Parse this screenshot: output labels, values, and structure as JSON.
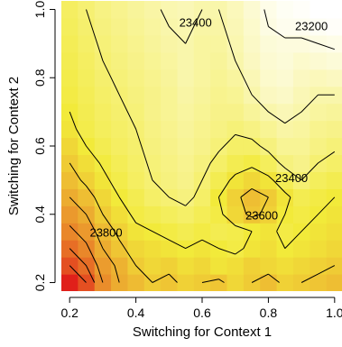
{
  "chart_data": {
    "type": "heatmap",
    "title": "",
    "xlabel": "Switching for Context 1",
    "ylabel": "Switching for Context 2",
    "xlim": [
      0.175,
      1.025
    ],
    "ylim": [
      0.175,
      1.025
    ],
    "x_ticks": [
      "0.2",
      "0.4",
      "0.6",
      "0.8",
      "1.0"
    ],
    "y_ticks": [
      "0.2",
      "0.4",
      "0.6",
      "0.8",
      "1.0"
    ],
    "x_tick_values": [
      0.2,
      0.4,
      0.6,
      0.8,
      1.0
    ],
    "y_tick_values": [
      0.2,
      0.4,
      0.6,
      0.8,
      1.0
    ],
    "grid": false,
    "colormap": {
      "low": "#ffffff",
      "mid": "#f2ea3a",
      "high": "#e0201a",
      "range": [
        23150,
        24150
      ]
    },
    "grid_x": [
      0.2,
      0.25,
      0.3,
      0.35,
      0.4,
      0.45,
      0.5,
      0.55,
      0.6,
      0.65,
      0.7,
      0.75,
      0.8,
      0.85,
      0.9,
      0.95,
      1.0
    ],
    "grid_y": [
      0.2,
      0.25,
      0.3,
      0.35,
      0.4,
      0.45,
      0.5,
      0.55,
      0.6,
      0.65,
      0.7,
      0.75,
      0.8,
      0.85,
      0.9,
      0.95,
      1.0
    ],
    "z": [
      [
        24150,
        24000,
        23800,
        23700,
        23650,
        23600,
        23620,
        23580,
        23600,
        23620,
        23560,
        23600,
        23640,
        23580,
        23600,
        23620,
        23640
      ],
      [
        24000,
        23900,
        23750,
        23680,
        23600,
        23560,
        23580,
        23540,
        23560,
        23520,
        23540,
        23580,
        23560,
        23540,
        23560,
        23580,
        23600
      ],
      [
        23900,
        23820,
        23700,
        23620,
        23560,
        23540,
        23520,
        23500,
        23520,
        23500,
        23480,
        23520,
        23540,
        23500,
        23520,
        23540,
        23560
      ],
      [
        23820,
        23760,
        23650,
        23580,
        23520,
        23500,
        23480,
        23460,
        23480,
        23460,
        23470,
        23500,
        23520,
        23480,
        23500,
        23520,
        23540
      ],
      [
        23760,
        23700,
        23600,
        23540,
        23480,
        23460,
        23440,
        23420,
        23450,
        23480,
        23560,
        23620,
        23580,
        23500,
        23480,
        23500,
        23520
      ],
      [
        23700,
        23640,
        23560,
        23500,
        23460,
        23420,
        23400,
        23380,
        23420,
        23500,
        23580,
        23640,
        23600,
        23520,
        23460,
        23480,
        23500
      ],
      [
        23640,
        23580,
        23520,
        23470,
        23430,
        23400,
        23380,
        23360,
        23400,
        23460,
        23520,
        23560,
        23520,
        23450,
        23400,
        23440,
        23460
      ],
      [
        23600,
        23540,
        23490,
        23450,
        23420,
        23390,
        23370,
        23350,
        23380,
        23420,
        23460,
        23480,
        23440,
        23380,
        23360,
        23400,
        23420
      ],
      [
        23560,
        23500,
        23460,
        23430,
        23410,
        23380,
        23360,
        23340,
        23360,
        23390,
        23420,
        23420,
        23380,
        23340,
        23340,
        23370,
        23390
      ],
      [
        23520,
        23470,
        23440,
        23420,
        23400,
        23370,
        23350,
        23330,
        23350,
        23370,
        23390,
        23370,
        23340,
        23310,
        23320,
        23350,
        23360
      ],
      [
        23500,
        23460,
        23430,
        23410,
        23390,
        23360,
        23340,
        23320,
        23340,
        23360,
        23360,
        23330,
        23300,
        23280,
        23300,
        23320,
        23330
      ],
      [
        23480,
        23450,
        23420,
        23400,
        23380,
        23360,
        23340,
        23310,
        23330,
        23350,
        23340,
        23300,
        23260,
        23250,
        23280,
        23300,
        23300
      ],
      [
        23470,
        23440,
        23410,
        23390,
        23370,
        23350,
        23330,
        23300,
        23320,
        23340,
        23320,
        23280,
        23240,
        23230,
        23260,
        23270,
        23260
      ],
      [
        23460,
        23430,
        23400,
        23380,
        23360,
        23340,
        23320,
        23300,
        23320,
        23330,
        23300,
        23260,
        23230,
        23220,
        23240,
        23230,
        23220
      ],
      [
        23450,
        23420,
        23390,
        23370,
        23350,
        23330,
        23310,
        23300,
        23320,
        23320,
        23290,
        23250,
        23220,
        23210,
        23210,
        23200,
        23190
      ],
      [
        23440,
        23410,
        23380,
        23360,
        23340,
        23320,
        23300,
        23290,
        23310,
        23310,
        23280,
        23240,
        23200,
        23180,
        23180,
        23170,
        23160
      ],
      [
        23430,
        23400,
        23370,
        23350,
        23330,
        23310,
        23290,
        23280,
        23300,
        23300,
        23270,
        23230,
        23190,
        23170,
        23160,
        23150,
        23150
      ]
    ],
    "contour_levels": [
      23200,
      23300,
      23400,
      23500,
      23600,
      23700,
      23800,
      23900,
      24000
    ],
    "contour_labels": [
      {
        "text": "23400",
        "x": 0.58,
        "y": 0.96
      },
      {
        "text": "23200",
        "x": 0.93,
        "y": 0.95
      },
      {
        "text": "23400",
        "x": 0.87,
        "y": 0.505
      },
      {
        "text": "23600",
        "x": 0.78,
        "y": 0.395
      },
      {
        "text": "23800",
        "x": 0.31,
        "y": 0.345
      }
    ]
  }
}
